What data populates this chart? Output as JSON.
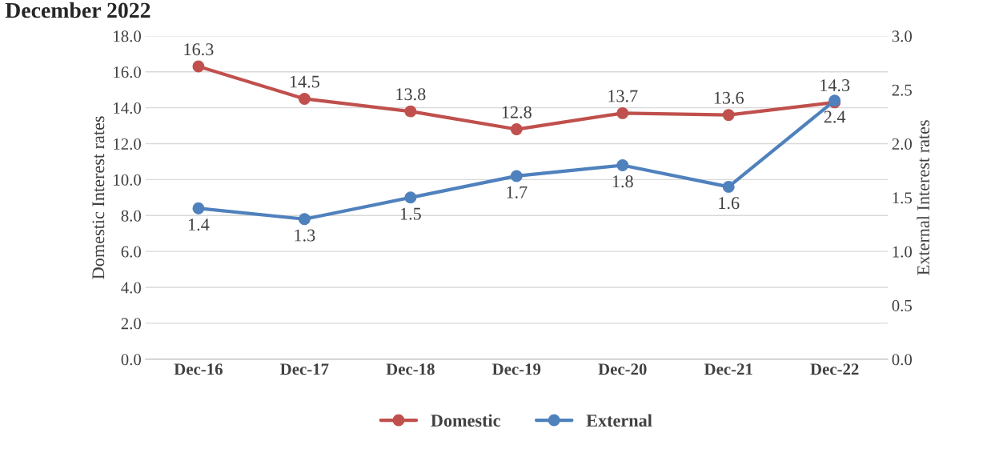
{
  "chart_data": {
    "type": "line",
    "title": "December 2022",
    "categories": [
      "Dec-16",
      "Dec-17",
      "Dec-18",
      "Dec-19",
      "Dec-20",
      "Dec-21",
      "Dec-22"
    ],
    "series": [
      {
        "name": "Domestic",
        "color": "#c0504d",
        "values": [
          16.3,
          14.5,
          13.8,
          12.8,
          13.7,
          13.6,
          14.3
        ]
      },
      {
        "name": "External",
        "color": "#4f81bd",
        "axis": "y2",
        "values": [
          1.4,
          1.3,
          1.5,
          1.7,
          1.8,
          1.6,
          2.4
        ]
      }
    ],
    "ylabel": "Domestic Interest rates",
    "y2label": "External Interest rates",
    "ylim": [
      0,
      18
    ],
    "yticks": [
      {
        "value": 0,
        "label": "0.0"
      },
      {
        "value": 2,
        "label": "2.0"
      },
      {
        "value": 4,
        "label": "4.0"
      },
      {
        "value": 6,
        "label": "6.0"
      },
      {
        "value": 8,
        "label": "8.0"
      },
      {
        "value": 10,
        "label": "10.0"
      },
      {
        "value": 12,
        "label": "12.0"
      },
      {
        "value": 14,
        "label": "14.0"
      },
      {
        "value": 16,
        "label": "16.0"
      },
      {
        "value": 18,
        "label": "18.0"
      }
    ],
    "y2lim": [
      0,
      3
    ],
    "y2ticks": [
      {
        "value": 0,
        "label": "0.0"
      },
      {
        "value": 0.5,
        "label": "0.5"
      },
      {
        "value": 1,
        "label": "1.0"
      },
      {
        "value": 1.5,
        "label": "1.5"
      },
      {
        "value": 2,
        "label": "2.0"
      },
      {
        "value": 2.5,
        "label": "2.5"
      },
      {
        "value": 3,
        "label": "3.0"
      }
    ],
    "grid": "y",
    "legend": "bottom",
    "marker": "circle",
    "line_style": "solid",
    "data_labels": true
  }
}
